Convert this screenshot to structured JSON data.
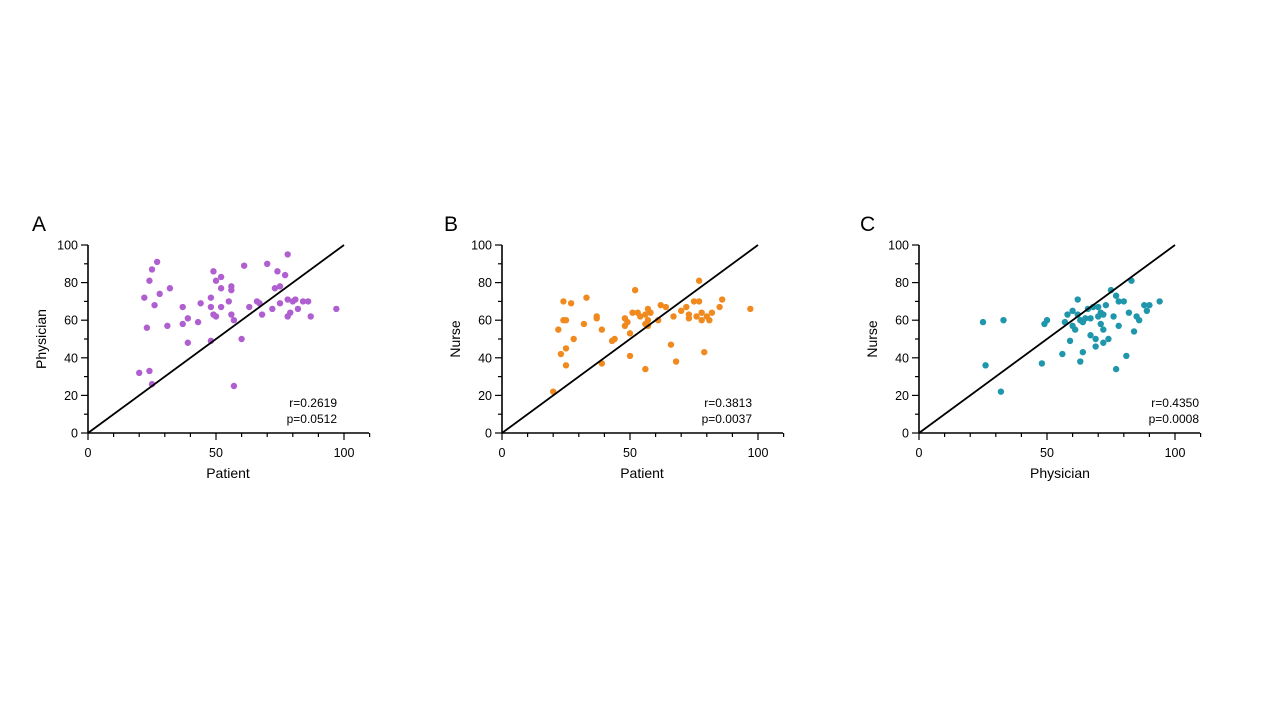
{
  "chart_data": [
    {
      "type": "scatter",
      "panel_label": "A",
      "xlabel": "Patient",
      "ylabel": "Physician",
      "xlim": [
        0,
        110
      ],
      "ylim": [
        0,
        100
      ],
      "x_ticks": [
        "0",
        "50",
        "100"
      ],
      "y_ticks": [
        "0",
        "20",
        "40",
        "60",
        "80",
        "100"
      ],
      "grid": false,
      "reference_line": {
        "from": [
          0,
          0
        ],
        "to": [
          100,
          100
        ]
      },
      "marker_color": "#b05fd1",
      "annotation_r": "r=0.2619",
      "annotation_p": "p=0.0512",
      "points": [
        [
          20,
          32
        ],
        [
          22,
          72
        ],
        [
          23,
          56
        ],
        [
          24,
          33
        ],
        [
          24,
          81
        ],
        [
          25,
          87
        ],
        [
          25,
          26
        ],
        [
          26,
          68
        ],
        [
          27,
          91
        ],
        [
          28,
          74
        ],
        [
          31,
          57
        ],
        [
          32,
          77
        ],
        [
          37,
          58
        ],
        [
          37,
          67
        ],
        [
          39,
          48
        ],
        [
          39,
          61
        ],
        [
          43,
          59
        ],
        [
          44,
          69
        ],
        [
          48,
          72
        ],
        [
          48,
          67
        ],
        [
          48,
          49
        ],
        [
          49,
          63
        ],
        [
          49,
          86
        ],
        [
          50,
          62
        ],
        [
          50,
          81
        ],
        [
          52,
          83
        ],
        [
          52,
          77
        ],
        [
          52,
          67
        ],
        [
          55,
          70
        ],
        [
          56,
          78
        ],
        [
          56,
          76
        ],
        [
          56,
          63
        ],
        [
          57,
          60
        ],
        [
          57,
          25
        ],
        [
          60,
          50
        ],
        [
          61,
          89
        ],
        [
          63,
          67
        ],
        [
          66,
          70
        ],
        [
          67,
          69
        ],
        [
          68,
          63
        ],
        [
          70,
          90
        ],
        [
          72,
          66
        ],
        [
          73,
          77
        ],
        [
          74,
          86
        ],
        [
          75,
          78
        ],
        [
          75,
          69
        ],
        [
          77,
          84
        ],
        [
          78,
          95
        ],
        [
          78,
          71
        ],
        [
          78,
          62
        ],
        [
          79,
          64
        ],
        [
          80,
          70
        ],
        [
          81,
          71
        ],
        [
          82,
          66
        ],
        [
          84,
          70
        ],
        [
          86,
          70
        ],
        [
          87,
          62
        ],
        [
          97,
          66
        ]
      ]
    },
    {
      "type": "scatter",
      "panel_label": "B",
      "xlabel": "Patient",
      "ylabel": "Nurse",
      "xlim": [
        0,
        110
      ],
      "ylim": [
        0,
        100
      ],
      "x_ticks": [
        "0",
        "50",
        "100"
      ],
      "y_ticks": [
        "0",
        "20",
        "40",
        "60",
        "80",
        "100"
      ],
      "grid": false,
      "reference_line": {
        "from": [
          0,
          0
        ],
        "to": [
          100,
          100
        ]
      },
      "marker_color": "#f08a1e",
      "annotation_r": "r=0.3813",
      "annotation_p": "p=0.0037",
      "points": [
        [
          20,
          22
        ],
        [
          22,
          55
        ],
        [
          23,
          42
        ],
        [
          24,
          70
        ],
        [
          24,
          60
        ],
        [
          25,
          60
        ],
        [
          25,
          45
        ],
        [
          25,
          36
        ],
        [
          27,
          69
        ],
        [
          28,
          50
        ],
        [
          32,
          58
        ],
        [
          33,
          72
        ],
        [
          37,
          61
        ],
        [
          37,
          62
        ],
        [
          39,
          37
        ],
        [
          39,
          55
        ],
        [
          43,
          49
        ],
        [
          44,
          50
        ],
        [
          48,
          61
        ],
        [
          48,
          57
        ],
        [
          49,
          59
        ],
        [
          50,
          53
        ],
        [
          50,
          41
        ],
        [
          51,
          64
        ],
        [
          52,
          76
        ],
        [
          53,
          64
        ],
        [
          54,
          62
        ],
        [
          56,
          34
        ],
        [
          56,
          58
        ],
        [
          56,
          63
        ],
        [
          57,
          57
        ],
        [
          57,
          60
        ],
        [
          57,
          66
        ],
        [
          58,
          64
        ],
        [
          61,
          60
        ],
        [
          62,
          68
        ],
        [
          64,
          67
        ],
        [
          66,
          47
        ],
        [
          67,
          62
        ],
        [
          68,
          38
        ],
        [
          70,
          65
        ],
        [
          72,
          67
        ],
        [
          73,
          63
        ],
        [
          73,
          61
        ],
        [
          75,
          70
        ],
        [
          76,
          62
        ],
        [
          77,
          81
        ],
        [
          77,
          70
        ],
        [
          78,
          60
        ],
        [
          78,
          64
        ],
        [
          79,
          43
        ],
        [
          80,
          62
        ],
        [
          81,
          60
        ],
        [
          82,
          64
        ],
        [
          85,
          67
        ],
        [
          86,
          71
        ],
        [
          97,
          66
        ]
      ]
    },
    {
      "type": "scatter",
      "panel_label": "C",
      "xlabel": "Physician",
      "ylabel": "Nurse",
      "xlim": [
        0,
        110
      ],
      "ylim": [
        0,
        100
      ],
      "x_ticks": [
        "0",
        "50",
        "100"
      ],
      "y_ticks": [
        "0",
        "20",
        "40",
        "60",
        "80",
        "100"
      ],
      "grid": false,
      "reference_line": {
        "from": [
          0,
          0
        ],
        "to": [
          100,
          100
        ]
      },
      "marker_color": "#1f96ab",
      "annotation_r": "r=0.4350",
      "annotation_p": "p=0.0008",
      "points": [
        [
          25,
          59
        ],
        [
          26,
          36
        ],
        [
          32,
          22
        ],
        [
          33,
          60
        ],
        [
          48,
          37
        ],
        [
          49,
          58
        ],
        [
          50,
          60
        ],
        [
          56,
          42
        ],
        [
          57,
          59
        ],
        [
          58,
          63
        ],
        [
          59,
          49
        ],
        [
          60,
          65
        ],
        [
          60,
          57
        ],
        [
          61,
          55
        ],
        [
          62,
          71
        ],
        [
          62,
          63
        ],
        [
          63,
          60
        ],
        [
          63,
          38
        ],
        [
          64,
          43
        ],
        [
          64,
          59
        ],
        [
          65,
          61
        ],
        [
          66,
          66
        ],
        [
          67,
          52
        ],
        [
          67,
          61
        ],
        [
          68,
          67
        ],
        [
          69,
          46
        ],
        [
          69,
          50
        ],
        [
          70,
          67
        ],
        [
          70,
          62
        ],
        [
          71,
          58
        ],
        [
          71,
          64
        ],
        [
          72,
          55
        ],
        [
          72,
          48
        ],
        [
          72,
          63
        ],
        [
          73,
          68
        ],
        [
          74,
          50
        ],
        [
          75,
          76
        ],
        [
          76,
          62
        ],
        [
          77,
          73
        ],
        [
          77,
          34
        ],
        [
          78,
          70
        ],
        [
          78,
          57
        ],
        [
          80,
          70
        ],
        [
          81,
          41
        ],
        [
          82,
          64
        ],
        [
          83,
          81
        ],
        [
          84,
          54
        ],
        [
          85,
          62
        ],
        [
          86,
          60
        ],
        [
          88,
          68
        ],
        [
          89,
          65
        ],
        [
          90,
          68
        ],
        [
          94,
          70
        ]
      ]
    }
  ]
}
